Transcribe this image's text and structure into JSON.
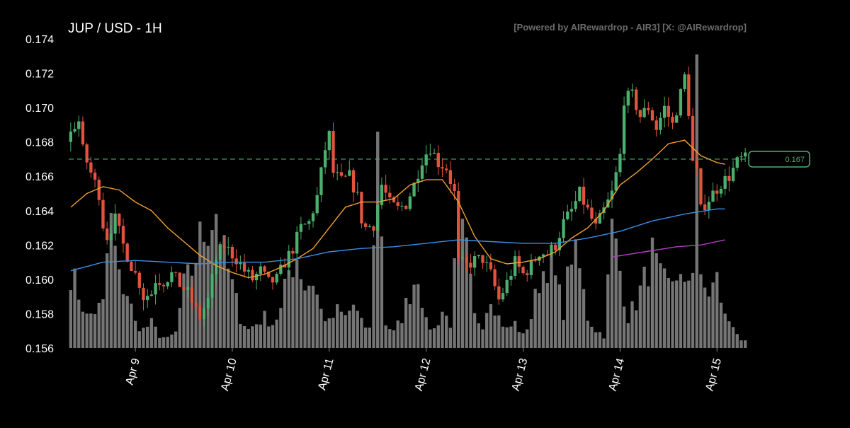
{
  "chart_data": {
    "type": "candlestick",
    "title": "JUP / USD - 1H",
    "watermark": "[Powered by AIRewardrop - AIR3] [X: @AIRewardrop]",
    "ylim": [
      0.156,
      0.174
    ],
    "yticks": [
      "0.174",
      "0.172",
      "0.170",
      "0.168",
      "0.166",
      "0.164",
      "0.162",
      "0.160",
      "0.158",
      "0.156"
    ],
    "xticks": [
      "Apr 9",
      "Apr 10",
      "Apr 11",
      "Apr 12",
      "Apr 13",
      "Apr 14",
      "Apr 15"
    ],
    "xtick_hours": [
      16,
      40,
      64,
      88,
      112,
      136,
      160
    ],
    "current_price": 0.167,
    "current_price_label": "0.167",
    "bars_per_day": 24,
    "colors": {
      "background": "#000000",
      "up": "#4caf6e",
      "down": "#e0533f",
      "volume": "#8a8a8a",
      "ma_fast": "#f0a030",
      "ma_mid": "#3a8ee6",
      "ma_slow": "#b040c0",
      "price_line": "#4caf6e",
      "watermark": "#6b6b6b",
      "text": "#ffffff"
    },
    "series": [
      {
        "name": "",
        "color": "#f0a030",
        "points": [
          [
            0,
            0.1642
          ],
          [
            4,
            0.165
          ],
          [
            8,
            0.1654
          ],
          [
            12,
            0.1652
          ],
          [
            16,
            0.1645
          ],
          [
            20,
            0.164
          ],
          [
            24,
            0.163
          ],
          [
            28,
            0.1622
          ],
          [
            32,
            0.1614
          ],
          [
            36,
            0.1608
          ],
          [
            40,
            0.1604
          ],
          [
            44,
            0.1601
          ],
          [
            48,
            0.1603
          ],
          [
            52,
            0.1607
          ],
          [
            56,
            0.1612
          ],
          [
            60,
            0.1618
          ],
          [
            64,
            0.163
          ],
          [
            68,
            0.1642
          ],
          [
            72,
            0.1645
          ],
          [
            76,
            0.1645
          ],
          [
            80,
            0.1647
          ],
          [
            84,
            0.1655
          ],
          [
            88,
            0.1658
          ],
          [
            92,
            0.1658
          ],
          [
            96,
            0.1645
          ],
          [
            100,
            0.1625
          ],
          [
            104,
            0.1612
          ],
          [
            108,
            0.1609
          ],
          [
            112,
            0.161
          ],
          [
            116,
            0.1612
          ],
          [
            120,
            0.1616
          ],
          [
            124,
            0.1624
          ],
          [
            128,
            0.163
          ],
          [
            132,
            0.164
          ],
          [
            136,
            0.1655
          ],
          [
            140,
            0.1662
          ],
          [
            144,
            0.167
          ],
          [
            148,
            0.1679
          ],
          [
            152,
            0.1681
          ],
          [
            156,
            0.1672
          ],
          [
            160,
            0.1668
          ],
          [
            162,
            0.1667
          ]
        ]
      },
      {
        "name": "",
        "color": "#3a8ee6",
        "points": [
          [
            0,
            0.1605
          ],
          [
            8,
            0.161
          ],
          [
            16,
            0.1611
          ],
          [
            24,
            0.161
          ],
          [
            32,
            0.1609
          ],
          [
            40,
            0.161
          ],
          [
            48,
            0.161
          ],
          [
            56,
            0.1612
          ],
          [
            64,
            0.1616
          ],
          [
            72,
            0.1618
          ],
          [
            80,
            0.1619
          ],
          [
            88,
            0.1621
          ],
          [
            96,
            0.1623
          ],
          [
            104,
            0.1622
          ],
          [
            112,
            0.1621
          ],
          [
            120,
            0.1621
          ],
          [
            128,
            0.1624
          ],
          [
            136,
            0.1628
          ],
          [
            144,
            0.1634
          ],
          [
            152,
            0.1638
          ],
          [
            160,
            0.1641
          ],
          [
            162,
            0.1641
          ]
        ]
      },
      {
        "name": "",
        "color": "#b040c0",
        "points": [
          [
            134,
            0.1613
          ],
          [
            142,
            0.1616
          ],
          [
            150,
            0.1619
          ],
          [
            156,
            0.162
          ],
          [
            162,
            0.1623
          ]
        ]
      }
    ],
    "keypoints": [
      [
        0,
        0.168
      ],
      [
        2,
        0.169
      ],
      [
        3,
        0.1692
      ],
      [
        4,
        0.1675
      ],
      [
        6,
        0.1662
      ],
      [
        8,
        0.165
      ],
      [
        9,
        0.1632
      ],
      [
        10,
        0.1625
      ],
      [
        12,
        0.1635
      ],
      [
        14,
        0.162
      ],
      [
        16,
        0.1608
      ],
      [
        18,
        0.1598
      ],
      [
        19,
        0.159
      ],
      [
        21,
        0.1592
      ],
      [
        22,
        0.16
      ],
      [
        24,
        0.1599
      ],
      [
        26,
        0.1603
      ],
      [
        28,
        0.1597
      ],
      [
        30,
        0.1592
      ],
      [
        32,
        0.1582
      ],
      [
        33,
        0.1578
      ],
      [
        35,
        0.1588
      ],
      [
        37,
        0.1612
      ],
      [
        39,
        0.162
      ],
      [
        40,
        0.1617
      ],
      [
        42,
        0.1612
      ],
      [
        44,
        0.1605
      ],
      [
        46,
        0.16
      ],
      [
        48,
        0.1605
      ],
      [
        50,
        0.1598
      ],
      [
        52,
        0.16
      ],
      [
        54,
        0.161
      ],
      [
        56,
        0.1618
      ],
      [
        58,
        0.163
      ],
      [
        60,
        0.1633
      ],
      [
        62,
        0.1648
      ],
      [
        63,
        0.1662
      ],
      [
        64,
        0.1676
      ],
      [
        65,
        0.1684
      ],
      [
        66,
        0.1662
      ],
      [
        68,
        0.1657
      ],
      [
        70,
        0.166
      ],
      [
        72,
        0.1648
      ],
      [
        73,
        0.1635
      ],
      [
        74,
        0.163
      ],
      [
        76,
        0.1632
      ],
      [
        78,
        0.1655
      ],
      [
        80,
        0.1644
      ],
      [
        82,
        0.1641
      ],
      [
        84,
        0.1644
      ],
      [
        86,
        0.1655
      ],
      [
        88,
        0.167
      ],
      [
        90,
        0.1677
      ],
      [
        92,
        0.1668
      ],
      [
        94,
        0.1665
      ],
      [
        96,
        0.165
      ],
      [
        97,
        0.161
      ],
      [
        99,
        0.1608
      ],
      [
        101,
        0.1611
      ],
      [
        103,
        0.1612
      ],
      [
        105,
        0.1603
      ],
      [
        107,
        0.1588
      ],
      [
        109,
        0.1598
      ],
      [
        111,
        0.161
      ],
      [
        113,
        0.1603
      ],
      [
        115,
        0.1608
      ],
      [
        117,
        0.1616
      ],
      [
        119,
        0.1615
      ],
      [
        121,
        0.162
      ],
      [
        123,
        0.1633
      ],
      [
        125,
        0.164
      ],
      [
        127,
        0.165
      ],
      [
        129,
        0.164
      ],
      [
        131,
        0.163
      ],
      [
        133,
        0.164
      ],
      [
        135,
        0.165
      ],
      [
        137,
        0.1672
      ],
      [
        138,
        0.1705
      ],
      [
        140,
        0.1707
      ],
      [
        142,
        0.1695
      ],
      [
        144,
        0.17
      ],
      [
        146,
        0.1688
      ],
      [
        148,
        0.17
      ],
      [
        150,
        0.169
      ],
      [
        152,
        0.1708
      ],
      [
        153,
        0.1718
      ],
      [
        154,
        0.1698
      ],
      [
        155,
        0.1668
      ],
      [
        156,
        0.1662
      ],
      [
        157,
        0.164
      ],
      [
        158,
        0.1644
      ],
      [
        160,
        0.165
      ],
      [
        162,
        0.1656
      ],
      [
        164,
        0.166
      ],
      [
        166,
        0.1668
      ],
      [
        167,
        0.167
      ]
    ],
    "volume_keypoints": [
      [
        0,
        0.25
      ],
      [
        4,
        0.1
      ],
      [
        8,
        0.14
      ],
      [
        9,
        0.3
      ],
      [
        10,
        0.4
      ],
      [
        12,
        0.22
      ],
      [
        14,
        0.18
      ],
      [
        16,
        0.08
      ],
      [
        18,
        0.06
      ],
      [
        20,
        0.08
      ],
      [
        22,
        0.04
      ],
      [
        24,
        0.03
      ],
      [
        26,
        0.05
      ],
      [
        28,
        0.2
      ],
      [
        30,
        0.25
      ],
      [
        32,
        0.35
      ],
      [
        34,
        0.4
      ],
      [
        36,
        0.45
      ],
      [
        38,
        0.3
      ],
      [
        40,
        0.2
      ],
      [
        42,
        0.1
      ],
      [
        44,
        0.06
      ],
      [
        46,
        0.08
      ],
      [
        48,
        0.1
      ],
      [
        50,
        0.08
      ],
      [
        52,
        0.12
      ],
      [
        54,
        0.25
      ],
      [
        56,
        0.3
      ],
      [
        58,
        0.2
      ],
      [
        60,
        0.22
      ],
      [
        62,
        0.12
      ],
      [
        64,
        0.08
      ],
      [
        66,
        0.12
      ],
      [
        68,
        0.1
      ],
      [
        70,
        0.14
      ],
      [
        72,
        0.08
      ],
      [
        74,
        0.06
      ],
      [
        76,
        0.7
      ],
      [
        78,
        0.08
      ],
      [
        80,
        0.05
      ],
      [
        82,
        0.1
      ],
      [
        84,
        0.18
      ],
      [
        86,
        0.25
      ],
      [
        88,
        0.08
      ],
      [
        90,
        0.06
      ],
      [
        92,
        0.12
      ],
      [
        94,
        0.08
      ],
      [
        96,
        0.4
      ],
      [
        98,
        0.3
      ],
      [
        100,
        0.1
      ],
      [
        102,
        0.08
      ],
      [
        104,
        0.18
      ],
      [
        106,
        0.1
      ],
      [
        108,
        0.06
      ],
      [
        110,
        0.08
      ],
      [
        112,
        0.04
      ],
      [
        114,
        0.1
      ],
      [
        116,
        0.22
      ],
      [
        118,
        0.28
      ],
      [
        120,
        0.22
      ],
      [
        122,
        0.12
      ],
      [
        124,
        0.32
      ],
      [
        126,
        0.25
      ],
      [
        128,
        0.1
      ],
      [
        130,
        0.06
      ],
      [
        132,
        0.04
      ],
      [
        134,
        0.38
      ],
      [
        135,
        0.32
      ],
      [
        136,
        0.25
      ],
      [
        138,
        0.1
      ],
      [
        140,
        0.15
      ],
      [
        142,
        0.22
      ],
      [
        144,
        0.3
      ],
      [
        146,
        0.22
      ],
      [
        148,
        0.2
      ],
      [
        150,
        0.25
      ],
      [
        152,
        0.18
      ],
      [
        154,
        0.28
      ],
      [
        155,
        0.95
      ],
      [
        156,
        0.2
      ],
      [
        158,
        0.18
      ],
      [
        160,
        0.22
      ],
      [
        162,
        0.1
      ],
      [
        164,
        0.08
      ],
      [
        166,
        0.02
      ]
    ]
  }
}
